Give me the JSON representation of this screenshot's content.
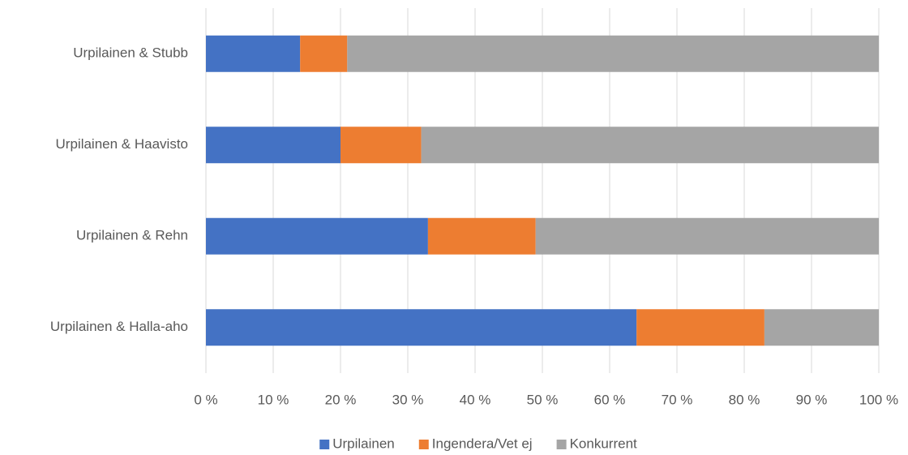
{
  "chart_data": {
    "type": "stacked_barh",
    "categories": [
      "Urpilainen & Stubb",
      "Urpilainen & Haavisto",
      "Urpilainen & Rehn",
      "Urpilainen & Halla-aho"
    ],
    "series": [
      {
        "name": "Urpilainen",
        "color": "#4472c4",
        "values": [
          14,
          20,
          33,
          64
        ]
      },
      {
        "name": "Ingendera/Vet ej",
        "color": "#ed7d31",
        "values": [
          7,
          12,
          16,
          19
        ]
      },
      {
        "name": "Konkurrent",
        "color": "#a5a5a5",
        "values": [
          79,
          68,
          51,
          17
        ]
      }
    ],
    "xlim": [
      0,
      100
    ],
    "xticks": [
      {
        "value": 0,
        "label": "0 %"
      },
      {
        "value": 10,
        "label": "10 %"
      },
      {
        "value": 20,
        "label": "20 %"
      },
      {
        "value": 30,
        "label": "30 %"
      },
      {
        "value": 40,
        "label": "40 %"
      },
      {
        "value": 50,
        "label": "50 %"
      },
      {
        "value": 60,
        "label": "60 %"
      },
      {
        "value": 70,
        "label": "70 %"
      },
      {
        "value": 80,
        "label": "80 %"
      },
      {
        "value": 90,
        "label": "90 %"
      },
      {
        "value": 100,
        "label": "100 %"
      }
    ],
    "grid": true,
    "legend": "bottom"
  }
}
